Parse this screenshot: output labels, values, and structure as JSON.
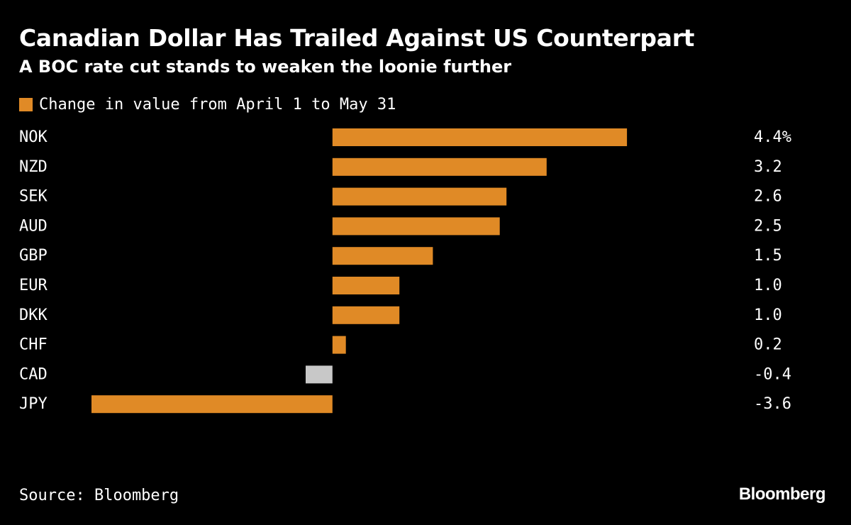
{
  "chart_data": {
    "type": "bar",
    "orientation": "horizontal",
    "title": "Canadian Dollar Has Trailed Against US Counterpart",
    "subtitle": "A BOC rate cut stands to weaken the loonie further",
    "legend": {
      "entries": [
        "Change in value from April 1 to May 31"
      ],
      "placement": "top-left"
    },
    "categories": [
      "NOK",
      "NZD",
      "SEK",
      "AUD",
      "GBP",
      "EUR",
      "DKK",
      "CHF",
      "CAD",
      "JPY"
    ],
    "series": [
      {
        "name": "Change in value from April 1 to May 31",
        "values": [
          4.4,
          3.2,
          2.6,
          2.5,
          1.5,
          1.0,
          1.0,
          0.2,
          -0.4,
          -3.6
        ]
      }
    ],
    "value_labels": [
      "4.4%",
      "3.2",
      "2.6",
      "2.5",
      "1.5",
      "1.0",
      "1.0",
      "0.2",
      "-0.4",
      "-3.6"
    ],
    "highlight_category": "CAD",
    "colors": {
      "bar": "#e08a26",
      "highlight": "#c8c8c8",
      "background": "#000000",
      "text": "#ffffff"
    },
    "xlim": [
      -3.6,
      4.4
    ],
    "grid": false,
    "xlabel": "",
    "ylabel": ""
  },
  "footer": {
    "source": "Source: Bloomberg",
    "brand": "Bloomberg"
  }
}
